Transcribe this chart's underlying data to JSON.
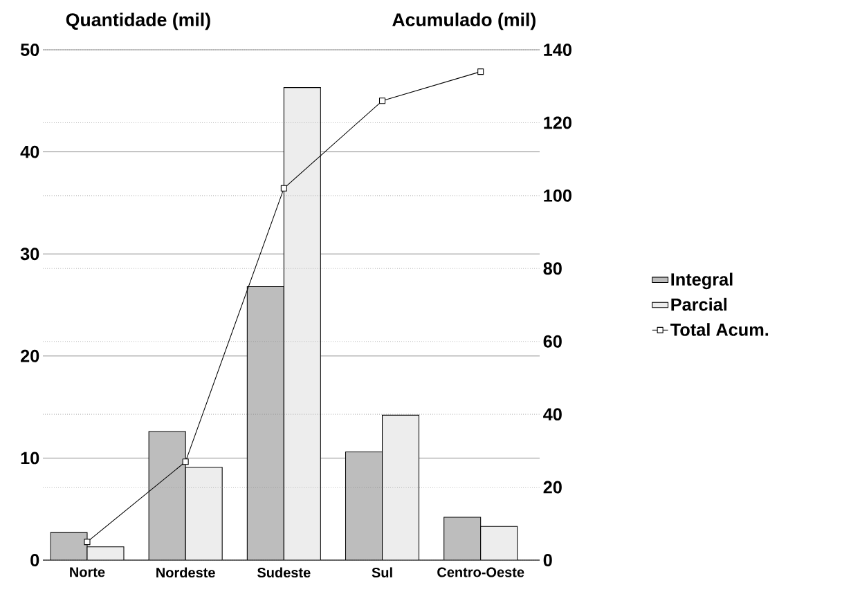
{
  "chart_data": {
    "type": "bar",
    "ylabel": "Quantidade (mil)",
    "y2label": "Acumulado (mil)",
    "categories": [
      "Norte",
      "Nordeste",
      "Sudeste",
      "Sul",
      "Centro-Oeste"
    ],
    "series": [
      {
        "name": "Integral",
        "color": "#bdbdbd",
        "values": [
          2.7,
          12.6,
          26.8,
          10.6,
          4.2
        ]
      },
      {
        "name": "Parcial",
        "color": "#ededed",
        "values": [
          1.3,
          9.1,
          46.3,
          14.2,
          3.3
        ]
      },
      {
        "name": "Total Acum.",
        "type": "line",
        "axis": "y2",
        "color": "#000000",
        "marker": "square",
        "values": [
          5,
          27,
          102,
          126,
          134
        ]
      }
    ],
    "ylim": [
      0,
      50
    ],
    "yticks": [
      0,
      10,
      20,
      30,
      40,
      50
    ],
    "y2lim": [
      0,
      140
    ],
    "y2ticks": [
      0,
      20,
      40,
      60,
      80,
      100,
      120,
      140
    ],
    "grid": true,
    "legend": "right"
  }
}
